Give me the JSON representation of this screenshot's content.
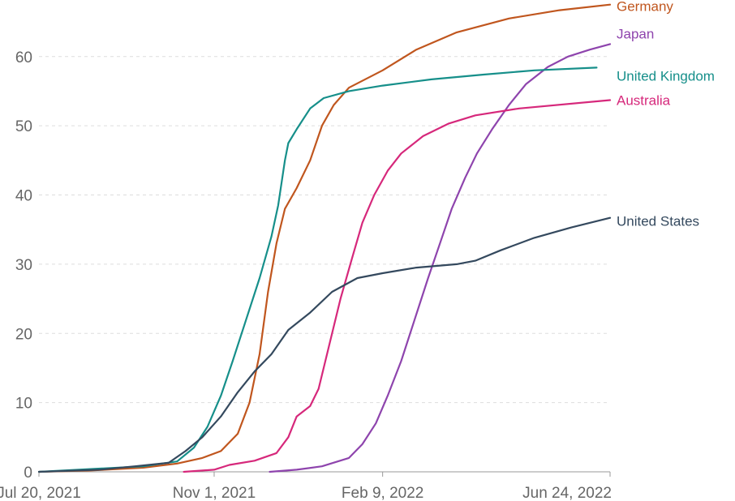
{
  "chart_data": {
    "type": "line",
    "title": "",
    "xlabel": "",
    "ylabel": "",
    "ylim": [
      0,
      67
    ],
    "yticks": [
      0,
      10,
      20,
      30,
      40,
      50,
      60
    ],
    "xlim": [
      "2021-07-20",
      "2022-06-24"
    ],
    "xticks": [
      {
        "date": "2021-07-20",
        "label": "Jul 20, 2021"
      },
      {
        "date": "2021-11-01",
        "label": "Nov 1, 2021"
      },
      {
        "date": "2022-02-09",
        "label": "Feb 9, 2022"
      },
      {
        "date": "2022-06-24",
        "label": "Jun 24, 2022"
      }
    ],
    "grid": "horizontal-dashed",
    "legend": "line-end labels",
    "series": [
      {
        "name": "Germany",
        "color": "#c0561e",
        "points": [
          [
            "2021-07-20",
            0
          ],
          [
            "2021-08-20",
            0.2
          ],
          [
            "2021-09-20",
            0.6
          ],
          [
            "2021-10-10",
            1.2
          ],
          [
            "2021-10-25",
            2.0
          ],
          [
            "2021-11-05",
            3.0
          ],
          [
            "2021-11-15",
            5.5
          ],
          [
            "2021-11-22",
            10
          ],
          [
            "2021-11-28",
            17
          ],
          [
            "2021-12-03",
            26
          ],
          [
            "2021-12-08",
            33
          ],
          [
            "2021-12-13",
            38
          ],
          [
            "2021-12-20",
            41
          ],
          [
            "2021-12-28",
            45
          ],
          [
            "2022-01-04",
            50
          ],
          [
            "2022-01-11",
            53
          ],
          [
            "2022-01-20",
            55.5
          ],
          [
            "2022-02-09",
            58
          ],
          [
            "2022-03-01",
            61
          ],
          [
            "2022-03-25",
            63.5
          ],
          [
            "2022-04-25",
            65.5
          ],
          [
            "2022-05-25",
            66.7
          ],
          [
            "2022-06-24",
            67.5
          ]
        ]
      },
      {
        "name": "Japan",
        "color": "#8e44ad",
        "points": [
          [
            "2021-12-04",
            0
          ],
          [
            "2021-12-20",
            0.3
          ],
          [
            "2022-01-04",
            0.8
          ],
          [
            "2022-01-20",
            2
          ],
          [
            "2022-01-28",
            4
          ],
          [
            "2022-02-05",
            7
          ],
          [
            "2022-02-12",
            11
          ],
          [
            "2022-02-20",
            16
          ],
          [
            "2022-02-28",
            22
          ],
          [
            "2022-03-08",
            28
          ],
          [
            "2022-03-15",
            33
          ],
          [
            "2022-03-22",
            38
          ],
          [
            "2022-03-30",
            42.5
          ],
          [
            "2022-04-06",
            46
          ],
          [
            "2022-04-15",
            49.5
          ],
          [
            "2022-04-25",
            53
          ],
          [
            "2022-05-05",
            56
          ],
          [
            "2022-05-18",
            58.5
          ],
          [
            "2022-05-30",
            60
          ],
          [
            "2022-06-12",
            61
          ],
          [
            "2022-06-24",
            61.8
          ]
        ]
      },
      {
        "name": "United Kingdom",
        "color": "#168f8a",
        "points": [
          [
            "2021-07-20",
            0
          ],
          [
            "2021-09-20",
            0.8
          ],
          [
            "2021-10-10",
            1.5
          ],
          [
            "2021-10-20",
            3.5
          ],
          [
            "2021-10-28",
            6.5
          ],
          [
            "2021-11-05",
            11
          ],
          [
            "2021-11-12",
            16
          ],
          [
            "2021-11-20",
            22
          ],
          [
            "2021-11-28",
            28
          ],
          [
            "2021-12-05",
            34
          ],
          [
            "2021-12-09",
            38.5
          ],
          [
            "2021-12-13",
            45
          ],
          [
            "2021-12-15",
            47.5
          ],
          [
            "2021-12-20",
            49.5
          ],
          [
            "2021-12-28",
            52.5
          ],
          [
            "2022-01-05",
            54
          ],
          [
            "2022-01-20",
            55
          ],
          [
            "2022-02-09",
            55.8
          ],
          [
            "2022-03-10",
            56.7
          ],
          [
            "2022-04-10",
            57.4
          ],
          [
            "2022-05-10",
            58
          ],
          [
            "2022-06-16",
            58.4
          ]
        ]
      },
      {
        "name": "Australia",
        "color": "#d6287b",
        "points": [
          [
            "2021-10-14",
            0
          ],
          [
            "2021-11-01",
            0.3
          ],
          [
            "2021-11-10",
            1
          ],
          [
            "2021-11-25",
            1.6
          ],
          [
            "2021-12-08",
            2.7
          ],
          [
            "2021-12-15",
            5
          ],
          [
            "2021-12-20",
            8
          ],
          [
            "2021-12-28",
            9.5
          ],
          [
            "2022-01-02",
            12
          ],
          [
            "2022-01-08",
            18
          ],
          [
            "2022-01-15",
            25
          ],
          [
            "2022-01-22",
            31
          ],
          [
            "2022-01-28",
            36
          ],
          [
            "2022-02-04",
            40
          ],
          [
            "2022-02-12",
            43.5
          ],
          [
            "2022-02-20",
            46
          ],
          [
            "2022-03-05",
            48.5
          ],
          [
            "2022-03-20",
            50.3
          ],
          [
            "2022-04-05",
            51.5
          ],
          [
            "2022-05-01",
            52.5
          ],
          [
            "2022-06-24",
            53.7
          ]
        ]
      },
      {
        "name": "United States",
        "color": "#34495e",
        "points": [
          [
            "2021-07-20",
            0
          ],
          [
            "2021-08-25",
            0.3
          ],
          [
            "2021-09-15",
            0.8
          ],
          [
            "2021-10-05",
            1.3
          ],
          [
            "2021-10-15",
            3
          ],
          [
            "2021-10-25",
            5
          ],
          [
            "2021-11-05",
            8
          ],
          [
            "2021-11-15",
            11.5
          ],
          [
            "2021-11-25",
            14.5
          ],
          [
            "2021-12-05",
            17
          ],
          [
            "2021-12-15",
            20.5
          ],
          [
            "2021-12-28",
            23
          ],
          [
            "2022-01-10",
            26
          ],
          [
            "2022-01-25",
            28
          ],
          [
            "2022-02-09",
            28.7
          ],
          [
            "2022-03-01",
            29.5
          ],
          [
            "2022-03-25",
            30
          ],
          [
            "2022-04-05",
            30.5
          ],
          [
            "2022-04-20",
            32
          ],
          [
            "2022-05-10",
            33.8
          ],
          [
            "2022-06-01",
            35.3
          ],
          [
            "2022-06-24",
            36.7
          ]
        ]
      }
    ]
  }
}
